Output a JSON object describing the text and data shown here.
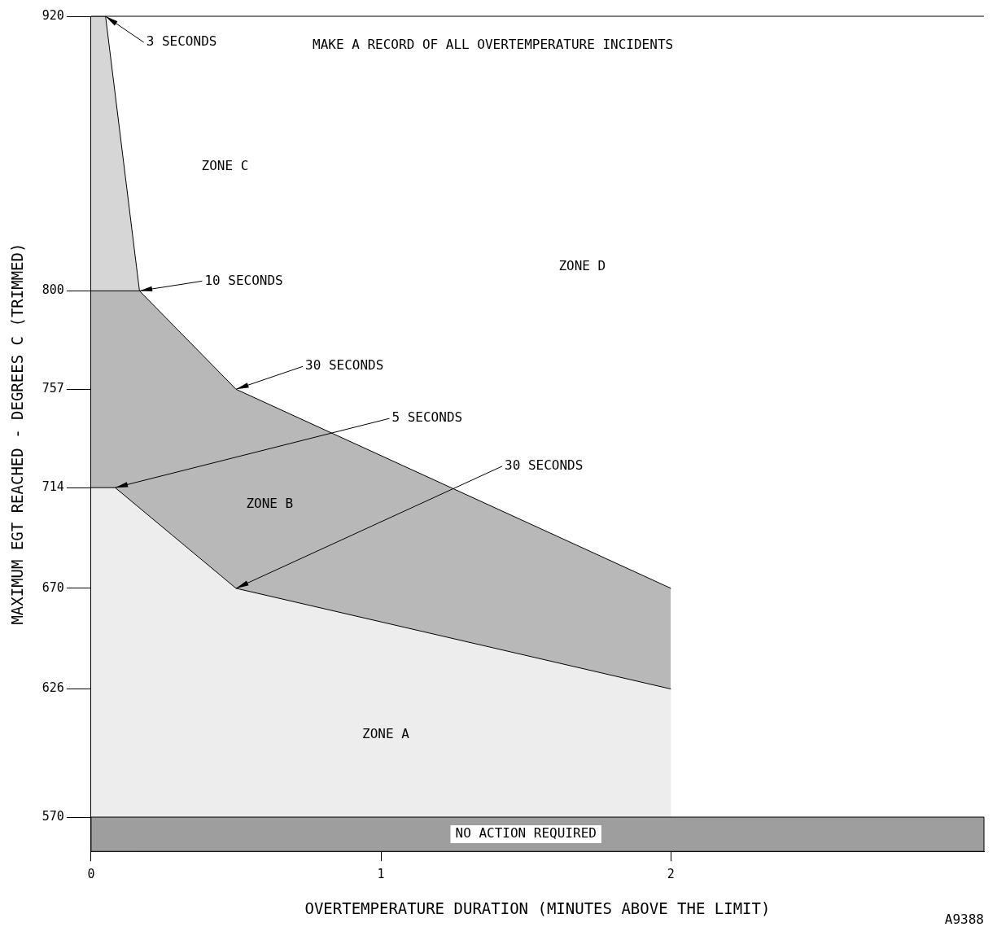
{
  "chart_data": {
    "type": "area",
    "xlabel": "OVERTEMPERATURE DURATION (MINUTES ABOVE THE LIMIT)",
    "ylabel": "MAXIMUM EGT REACHED - DEGREES C (TRIMMED)",
    "series": [
      {
        "color": "#ededed",
        "x": [
          0,
          0.083,
          0.5,
          2
        ],
        "values": [
          714,
          714,
          670,
          626
        ]
      },
      {
        "color": "#b8b8b8",
        "x": [
          0,
          0.167,
          0.5,
          2
        ],
        "values": [
          800,
          800,
          757,
          670
        ]
      },
      {
        "color": "#d6d6d6",
        "x": [
          0,
          0.05,
          0.167
        ],
        "values": [
          920,
          920,
          800
        ]
      }
    ],
    "bands": [
      {
        "axis": "y",
        "from": 555,
        "to": 570,
        "label": "NO ACTION REQUIRED",
        "color": "#9e9e9e"
      }
    ],
    "annotations": [
      "MAKE A RECORD OF ALL OVERTEMPERATURE INCIDENTS",
      "ZONE D",
      "ZONE C",
      "ZONE B",
      "ZONE A",
      {
        "text": "3 SECONDS",
        "x": 0.05,
        "y": 920
      },
      {
        "text": "10 SECONDS",
        "x": 0.167,
        "y": 800
      },
      {
        "text": "30 SECONDS",
        "x": 0.5,
        "y": 757
      },
      {
        "text": "5 SECONDS",
        "x": 0.083,
        "y": 714
      },
      {
        "text": "30 SECONDS",
        "x": 0.5,
        "y": 670
      },
      "A9388"
    ],
    "xlim": [
      0,
      3.08
    ],
    "xticks": [
      0,
      1,
      2
    ],
    "ylim": [
      555,
      920
    ],
    "yticks": [
      570,
      626,
      670,
      714,
      757,
      800,
      920
    ],
    "grid": false,
    "legend": false
  }
}
